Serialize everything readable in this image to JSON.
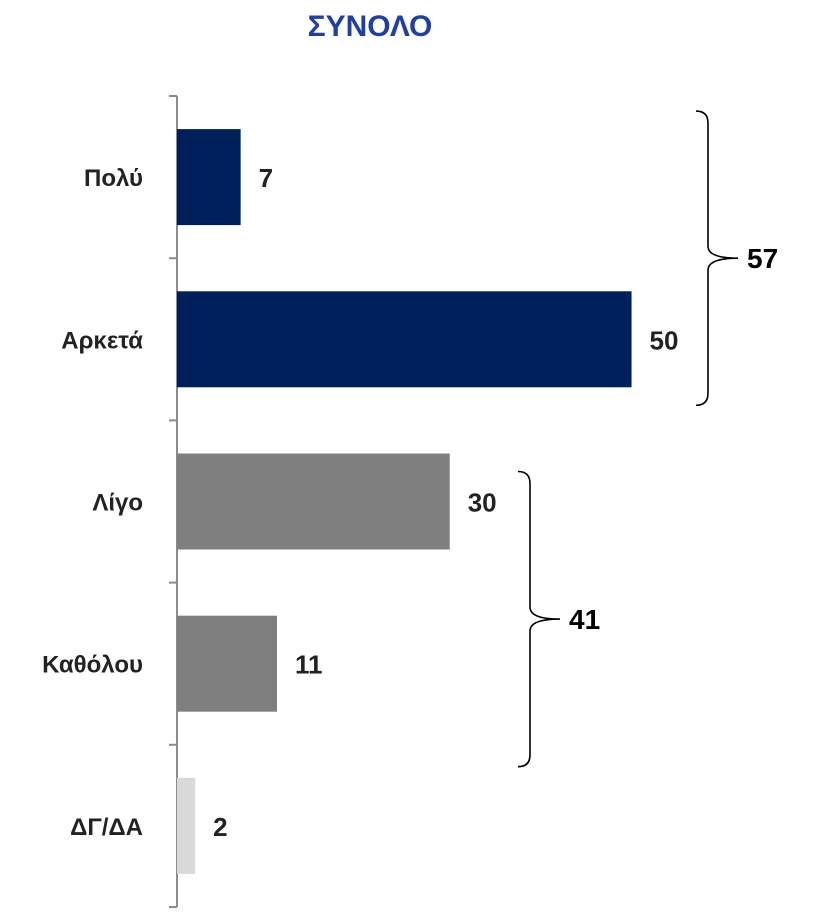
{
  "chart_data": {
    "type": "bar",
    "orientation": "horizontal",
    "title": "ΣΥΝΟΛΟ",
    "categories": [
      "Πολύ",
      "Αρκετά",
      "Λίγο",
      "Καθόλου",
      "ΔΓ/ΔΑ"
    ],
    "values": [
      7,
      50,
      30,
      11,
      2
    ],
    "value_labels": [
      "7",
      "50",
      "30",
      "11",
      "2"
    ],
    "xlim": [
      0,
      55
    ],
    "grid": false,
    "groups": [
      {
        "label": "57",
        "value": 57,
        "categories": [
          "Πολύ",
          "Αρκετά"
        ]
      },
      {
        "label": "41",
        "value": 41,
        "categories": [
          "Λίγο",
          "Καθόλου"
        ]
      }
    ]
  },
  "colors": {
    "title": "#1f3fa8",
    "bars": [
      "#00205b",
      "#00205b",
      "#7f7f7f",
      "#7f7f7f",
      "#d9d9d9"
    ],
    "axis": "#8c8c8c",
    "bracket": "#000000"
  }
}
